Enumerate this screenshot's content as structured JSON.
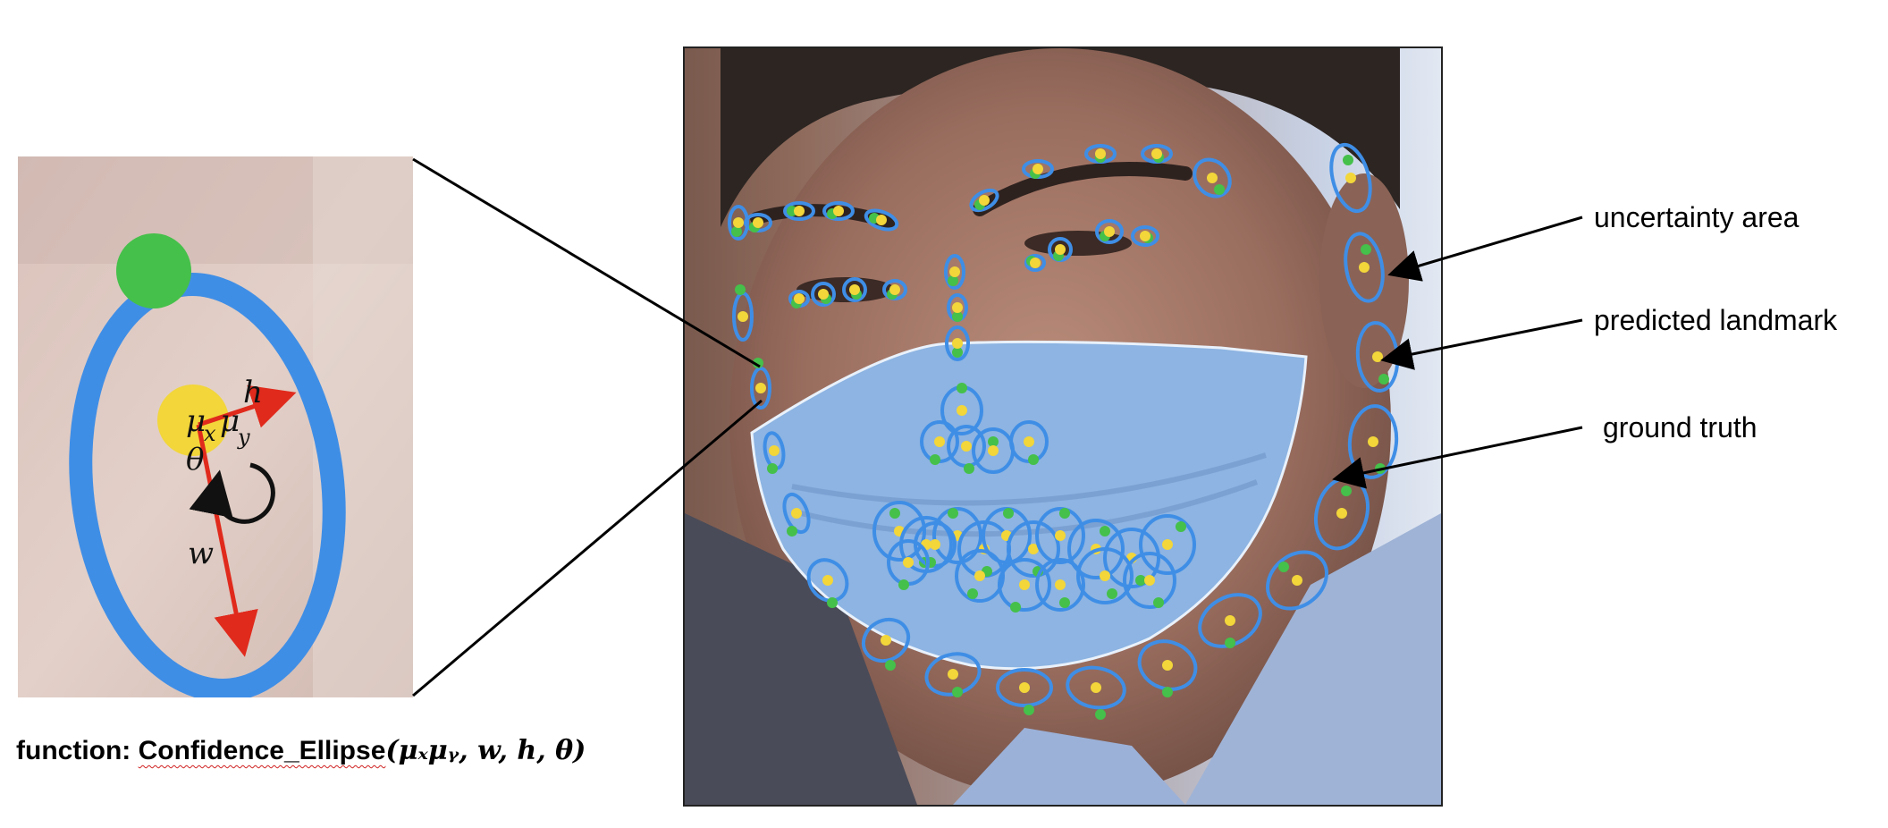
{
  "caption": {
    "prefix": "function: ",
    "function_name": "Confidence_Ellipse",
    "args": "(μₓμᵧ, w, h, θ)"
  },
  "zoom": {
    "labels": {
      "h": "h",
      "w": "w",
      "theta": "θ",
      "mu_x": "μ",
      "mu_x_sub": "x",
      "mu_y": "μ",
      "mu_y_sub": "y"
    }
  },
  "annotations": {
    "uncertainty": "uncertainty area",
    "predicted": "predicted landmark",
    "ground_truth": "ground truth"
  },
  "colors": {
    "ellipse": "#3f8ee6",
    "predicted": "#f2d63a",
    "ground_truth": "#45c04a",
    "vector": "#e02a1c",
    "mask": "#8db4e2",
    "connector": "#000000"
  },
  "icons": [
    "face-photo",
    "rotation-arrow-icon"
  ]
}
